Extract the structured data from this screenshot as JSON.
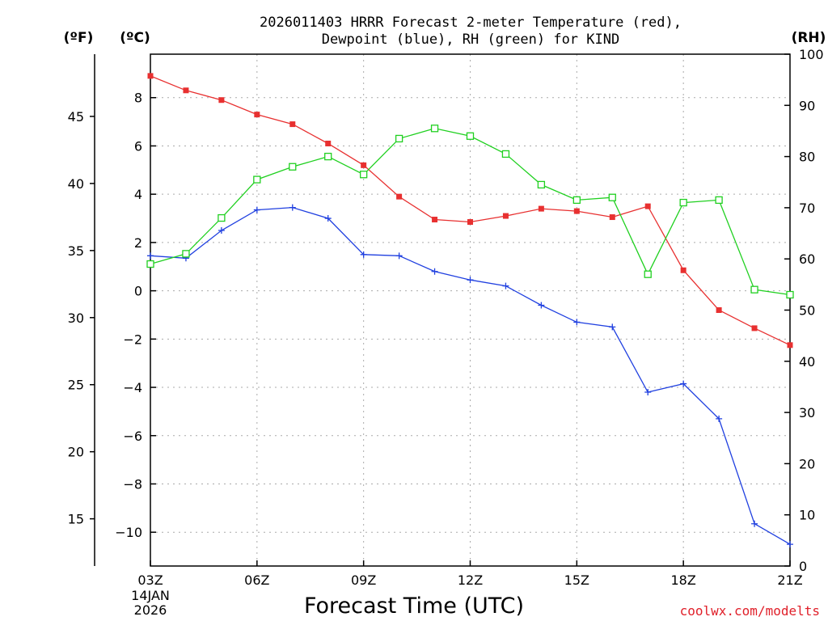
{
  "chart_data": {
    "type": "line",
    "title": "2026011403 HRRR Forecast 2-meter Temperature (red),",
    "subtitle": "Dewpoint (blue), RH (green) for KIND",
    "xlabel": "Forecast Time (UTC)",
    "left_unit_f": "(ºF)",
    "left_unit_c": "(ºC)",
    "right_unit": "(RH)",
    "date_line1": "14JAN",
    "date_line2": "2026",
    "credit": "coolwx.com/modelts",
    "grid": true,
    "x_hours": [
      3,
      4,
      5,
      6,
      7,
      8,
      9,
      10,
      11,
      12,
      13,
      14,
      15,
      16,
      17,
      18,
      19,
      20,
      21
    ],
    "x_ticks": [
      3,
      6,
      9,
      12,
      15,
      18,
      21
    ],
    "x_tick_labels": [
      "03Z",
      "06Z",
      "09Z",
      "12Z",
      "15Z",
      "18Z",
      "21Z"
    ],
    "xlim": [
      3,
      21
    ],
    "ylim_c": [
      -11.4,
      9.8
    ],
    "y_ticks_c": [
      -10,
      -8,
      -6,
      -4,
      -2,
      0,
      2,
      4,
      6,
      8
    ],
    "y_tick_labels_c": [
      "−10",
      "−8",
      "−6",
      "−4",
      "−2",
      "0",
      "2",
      "4",
      "6",
      "8"
    ],
    "y_ticks_f": [
      15,
      20,
      25,
      30,
      35,
      40,
      45
    ],
    "y_tick_labels_f": [
      "15",
      "20",
      "25",
      "30",
      "35",
      "40",
      "45"
    ],
    "ylim_rh": [
      0,
      100
    ],
    "y_ticks_rh": [
      0,
      10,
      20,
      30,
      40,
      50,
      60,
      70,
      80,
      90,
      100
    ],
    "y_tick_labels_rh": [
      "0",
      "10",
      "20",
      "30",
      "40",
      "50",
      "60",
      "70",
      "80",
      "90",
      "100"
    ],
    "series": [
      {
        "name": "Temperature",
        "axis": "C",
        "color": "#e83030",
        "marker": "filled-square",
        "values": [
          8.9,
          8.3,
          7.9,
          7.3,
          6.9,
          6.1,
          5.2,
          3.9,
          2.95,
          2.85,
          3.1,
          3.4,
          3.3,
          3.05,
          3.5,
          0.85,
          -0.8,
          -1.55,
          -2.25
        ]
      },
      {
        "name": "Dewpoint",
        "axis": "C",
        "color": "#2040e0",
        "marker": "plus",
        "values": [
          1.45,
          1.35,
          2.5,
          3.35,
          3.45,
          3.0,
          1.5,
          1.45,
          0.8,
          0.45,
          0.2,
          -0.6,
          -1.3,
          -1.5,
          -4.2,
          -3.85,
          -5.3,
          -9.65,
          -10.5
        ]
      },
      {
        "name": "RH",
        "axis": "RH",
        "color": "#20d020",
        "marker": "open-square",
        "values": [
          59,
          61,
          68,
          75.5,
          78,
          80,
          76.5,
          83.5,
          85.5,
          84,
          80.5,
          74.5,
          71.5,
          72,
          57,
          71,
          71.5,
          54,
          53
        ]
      }
    ]
  }
}
